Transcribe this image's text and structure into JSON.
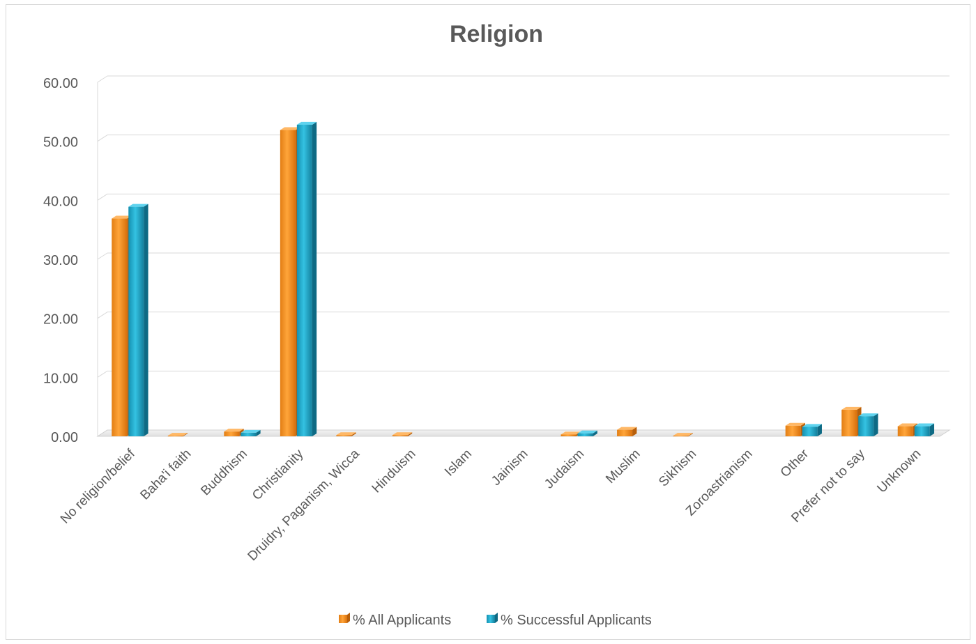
{
  "chart_data": {
    "type": "bar",
    "title": "Religion",
    "xlabel": "",
    "ylabel": "",
    "ylim": [
      0,
      60
    ],
    "yticks": [
      "0.00",
      "10.00",
      "20.00",
      "30.00",
      "40.00",
      "50.00",
      "60.00"
    ],
    "grid": true,
    "legend_position": "bottom",
    "categories": [
      "No religion/belief",
      "Baha'i faith",
      "Buddhism",
      "Christianity",
      "Druidry, Paganism, Wicca",
      "Hinduism",
      "Islam",
      "Jainism",
      "Judaism",
      "Muslim",
      "Sikhism",
      "Zoroastrianism",
      "Other",
      "Prefer not to say",
      "Unknown"
    ],
    "series": [
      {
        "name": "% All Applicants",
        "color": "#f7941d",
        "values": [
          36.9,
          0.1,
          0.8,
          51.9,
          0.2,
          0.2,
          0,
          0,
          0.3,
          1.1,
          0.1,
          0,
          1.8,
          4.5,
          1.7
        ]
      },
      {
        "name": "% Successful Applicants",
        "color": "#1fa8c8",
        "values": [
          38.9,
          0,
          0.6,
          52.8,
          0,
          0,
          0,
          0,
          0.5,
          0,
          0,
          0,
          1.6,
          3.4,
          1.7
        ]
      }
    ]
  }
}
